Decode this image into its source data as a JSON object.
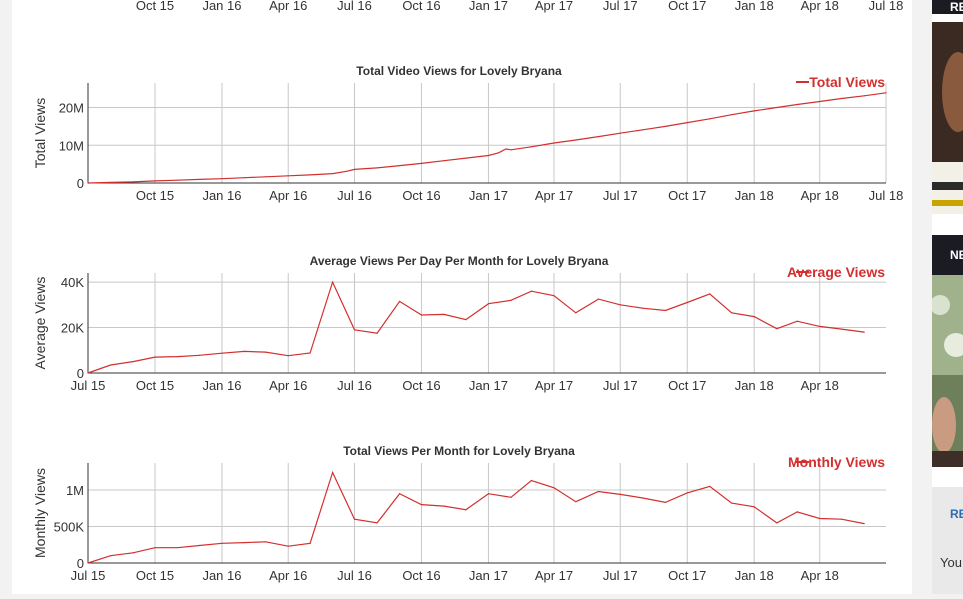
{
  "colors": {
    "series": "#d32f2f",
    "grid": "#c8c8c8",
    "axis": "#333333",
    "sidebar_dark": "#1b1b24"
  },
  "top_axis": {
    "ticks": [
      "Oct 15",
      "Jan 16",
      "Apr 16",
      "Jul 16",
      "Oct 16",
      "Jan 17",
      "Apr 17",
      "Jul 17",
      "Oct 17",
      "Jan 18",
      "Apr 18",
      "Jul 18"
    ]
  },
  "chart_data": [
    {
      "type": "line",
      "title": "Total Video Views for Lovely Bryana",
      "ylabel": "Total Views",
      "xlabel": "",
      "x_ticks": [
        "Oct 15",
        "Jan 16",
        "Apr 16",
        "Jul 16",
        "Oct 16",
        "Jan 17",
        "Apr 17",
        "Jul 17",
        "Oct 17",
        "Jan 18",
        "Apr 18",
        "Jul 18"
      ],
      "y_ticks": [
        "0",
        "10M",
        "20M"
      ],
      "y_tick_values": [
        0,
        10000000,
        20000000
      ],
      "ylim": [
        0,
        26500000
      ],
      "legend_position": "top-right",
      "grid": true,
      "series": [
        {
          "name": "Total Views",
          "points": [
            [
              "2015-07-01",
              0
            ],
            [
              "2015-08-01",
              150000
            ],
            [
              "2015-09-01",
              300000
            ],
            [
              "2015-10-01",
              550000
            ],
            [
              "2015-11-01",
              750000
            ],
            [
              "2015-12-01",
              950000
            ],
            [
              "2016-01-01",
              1150000
            ],
            [
              "2016-02-01",
              1400000
            ],
            [
              "2016-03-01",
              1650000
            ],
            [
              "2016-04-01",
              1900000
            ],
            [
              "2016-05-01",
              2150000
            ],
            [
              "2016-06-01",
              2500000
            ],
            [
              "2016-06-20",
              3100000
            ],
            [
              "2016-07-01",
              3600000
            ],
            [
              "2016-08-01",
              4000000
            ],
            [
              "2016-09-01",
              4600000
            ],
            [
              "2016-10-01",
              5200000
            ],
            [
              "2016-11-01",
              5900000
            ],
            [
              "2016-12-01",
              6600000
            ],
            [
              "2017-01-01",
              7300000
            ],
            [
              "2017-01-15",
              8000000
            ],
            [
              "2017-01-25",
              9000000
            ],
            [
              "2017-02-01",
              8800000
            ],
            [
              "2017-03-01",
              9600000
            ],
            [
              "2017-04-01",
              10600000
            ],
            [
              "2017-05-01",
              11400000
            ],
            [
              "2017-06-01",
              12300000
            ],
            [
              "2017-07-01",
              13200000
            ],
            [
              "2017-08-01",
              14100000
            ],
            [
              "2017-09-01",
              15000000
            ],
            [
              "2017-10-01",
              16000000
            ],
            [
              "2017-11-01",
              17000000
            ],
            [
              "2017-12-01",
              18100000
            ],
            [
              "2018-01-01",
              19100000
            ],
            [
              "2018-02-01",
              20000000
            ],
            [
              "2018-03-01",
              20800000
            ],
            [
              "2018-04-01",
              21600000
            ],
            [
              "2018-05-01",
              22400000
            ],
            [
              "2018-06-01",
              23100000
            ],
            [
              "2018-07-01",
              23900000
            ]
          ]
        }
      ]
    },
    {
      "type": "line",
      "title": "Average Views Per Day Per Month for Lovely Bryana",
      "ylabel": "Average Views",
      "xlabel": "",
      "x_ticks": [
        "Jul 15",
        "Oct 15",
        "Jan 16",
        "Apr 16",
        "Jul 16",
        "Oct 16",
        "Jan 17",
        "Apr 17",
        "Jul 17",
        "Oct 17",
        "Jan 18",
        "Apr 18"
      ],
      "y_ticks": [
        "0",
        "20K",
        "40K"
      ],
      "y_tick_values": [
        0,
        20000,
        40000
      ],
      "ylim": [
        0,
        44000
      ],
      "legend_position": "top-right",
      "grid": true,
      "series": [
        {
          "name": "Average Views",
          "points": [
            [
              "2015-07-01",
              0
            ],
            [
              "2015-08-01",
              3500
            ],
            [
              "2015-09-01",
              5000
            ],
            [
              "2015-10-01",
              7000
            ],
            [
              "2015-11-01",
              7200
            ],
            [
              "2015-12-01",
              7800
            ],
            [
              "2016-01-01",
              8700
            ],
            [
              "2016-02-01",
              9500
            ],
            [
              "2016-03-01",
              9200
            ],
            [
              "2016-04-01",
              7600
            ],
            [
              "2016-05-01",
              8800
            ],
            [
              "2016-06-01",
              40000
            ],
            [
              "2016-07-01",
              19000
            ],
            [
              "2016-08-01",
              17500
            ],
            [
              "2016-09-01",
              31500
            ],
            [
              "2016-10-01",
              25500
            ],
            [
              "2016-11-01",
              25800
            ],
            [
              "2016-12-01",
              23500
            ],
            [
              "2017-01-01",
              30500
            ],
            [
              "2017-02-01",
              32000
            ],
            [
              "2017-03-01",
              36000
            ],
            [
              "2017-04-01",
              34000
            ],
            [
              "2017-05-01",
              26500
            ],
            [
              "2017-06-01",
              32500
            ],
            [
              "2017-07-01",
              30000
            ],
            [
              "2017-08-01",
              28500
            ],
            [
              "2017-09-01",
              27500
            ],
            [
              "2017-10-01",
              31000
            ],
            [
              "2017-11-01",
              34800
            ],
            [
              "2017-12-01",
              26500
            ],
            [
              "2018-01-01",
              24800
            ],
            [
              "2018-02-01",
              19500
            ],
            [
              "2018-03-01",
              22800
            ],
            [
              "2018-04-01",
              20500
            ],
            [
              "2018-05-01",
              19300
            ],
            [
              "2018-06-01",
              18000
            ]
          ]
        }
      ]
    },
    {
      "type": "line",
      "title": "Total Views Per Month for Lovely Bryana",
      "ylabel": "Monthly Views",
      "xlabel": "",
      "x_ticks": [
        "Jul 15",
        "Oct 15",
        "Jan 16",
        "Apr 16",
        "Jul 16",
        "Oct 16",
        "Jan 17",
        "Apr 17",
        "Jul 17",
        "Oct 17",
        "Jan 18",
        "Apr 18"
      ],
      "y_ticks": [
        "0",
        "500K",
        "1M"
      ],
      "y_tick_values": [
        0,
        500000,
        1000000
      ],
      "ylim": [
        0,
        1370000
      ],
      "legend_position": "top-right",
      "grid": true,
      "series": [
        {
          "name": "Monthly Views",
          "points": [
            [
              "2015-07-01",
              0
            ],
            [
              "2015-08-01",
              100000
            ],
            [
              "2015-09-01",
              140000
            ],
            [
              "2015-10-01",
              210000
            ],
            [
              "2015-11-01",
              210000
            ],
            [
              "2015-12-01",
              240000
            ],
            [
              "2016-01-01",
              270000
            ],
            [
              "2016-02-01",
              280000
            ],
            [
              "2016-03-01",
              290000
            ],
            [
              "2016-04-01",
              230000
            ],
            [
              "2016-05-01",
              270000
            ],
            [
              "2016-06-01",
              1240000
            ],
            [
              "2016-07-01",
              600000
            ],
            [
              "2016-08-01",
              550000
            ],
            [
              "2016-09-01",
              950000
            ],
            [
              "2016-10-01",
              800000
            ],
            [
              "2016-11-01",
              780000
            ],
            [
              "2016-12-01",
              730000
            ],
            [
              "2017-01-01",
              950000
            ],
            [
              "2017-02-01",
              900000
            ],
            [
              "2017-03-01",
              1130000
            ],
            [
              "2017-04-01",
              1030000
            ],
            [
              "2017-05-01",
              840000
            ],
            [
              "2017-06-01",
              980000
            ],
            [
              "2017-07-01",
              940000
            ],
            [
              "2017-08-01",
              890000
            ],
            [
              "2017-09-01",
              830000
            ],
            [
              "2017-10-01",
              960000
            ],
            [
              "2017-11-01",
              1050000
            ],
            [
              "2017-12-01",
              820000
            ],
            [
              "2018-01-01",
              770000
            ],
            [
              "2018-02-01",
              550000
            ],
            [
              "2018-03-01",
              700000
            ],
            [
              "2018-04-01",
              610000
            ],
            [
              "2018-05-01",
              600000
            ],
            [
              "2018-06-01",
              540000
            ]
          ]
        }
      ]
    }
  ],
  "sidebar": {
    "headers": [
      "RE",
      "NE",
      "RE"
    ],
    "text": "You"
  }
}
